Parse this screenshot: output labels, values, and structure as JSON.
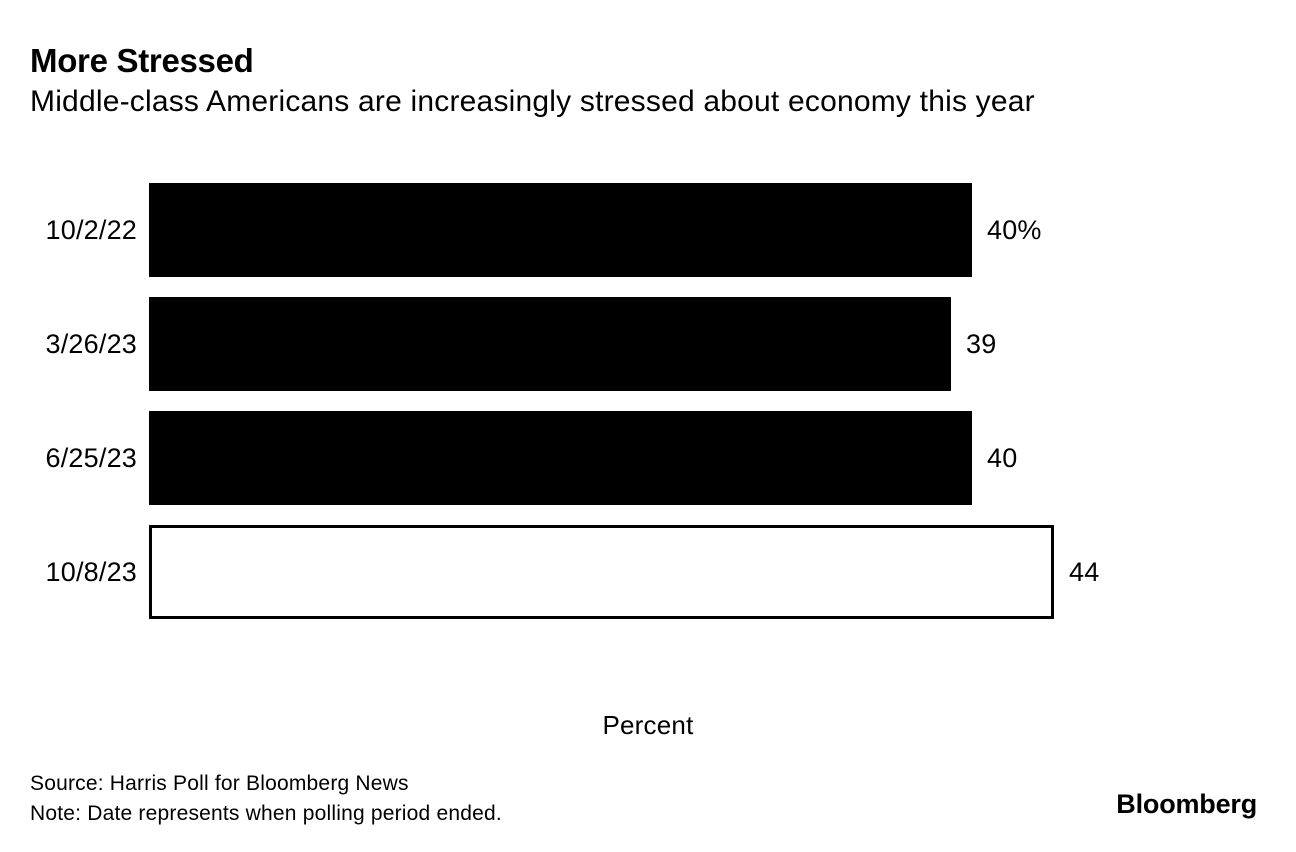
{
  "header": {
    "title": "More Stressed",
    "subtitle": "Middle-class Americans are increasingly stressed about economy this year"
  },
  "chart_data": {
    "type": "bar",
    "orientation": "horizontal",
    "categories": [
      "10/2/22",
      "3/26/23",
      "6/25/23",
      "10/8/23"
    ],
    "values": [
      40,
      39,
      40,
      44
    ],
    "value_labels": [
      "40%",
      "39",
      "40",
      "44"
    ],
    "bar_styles": [
      "filled",
      "filled",
      "filled",
      "outlined"
    ],
    "title": "More Stressed",
    "subtitle": "Middle-class Americans are increasingly stressed about economy this year",
    "xlabel": "Percent",
    "ylabel": "",
    "xlim": [
      0,
      44
    ],
    "grid": false,
    "legend_position": "none",
    "colors": {
      "bar_fill": "#000000",
      "bar_outline": "#000000",
      "background": "#ffffff",
      "text": "#000000"
    }
  },
  "footer": {
    "source": "Source: Harris Poll for Bloomberg News",
    "note": "Note: Date represents when polling period ended.",
    "brand": "Bloomberg"
  }
}
